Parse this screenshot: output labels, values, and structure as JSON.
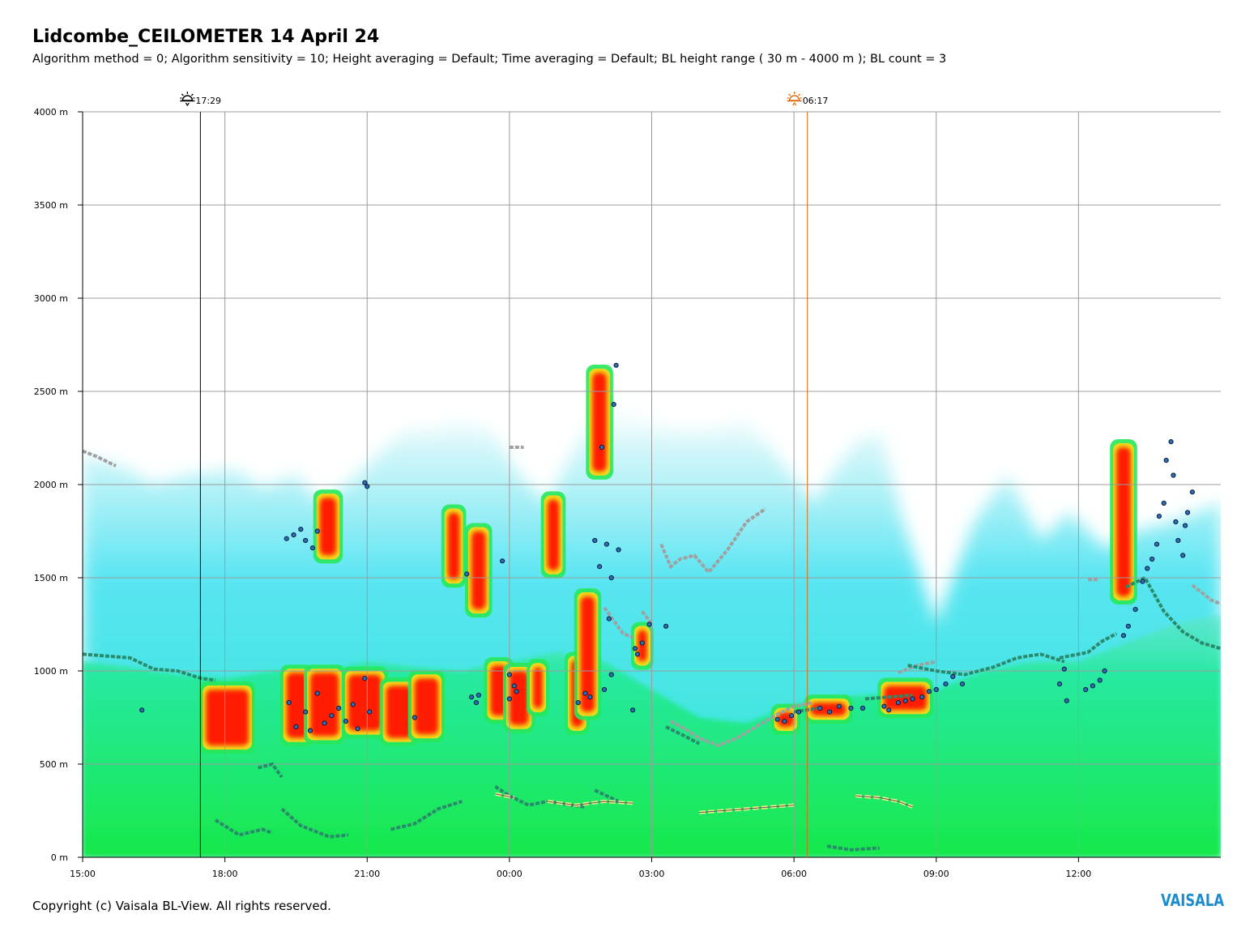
{
  "header": {
    "title": "Lidcombe_CEILOMETER 14 April 24",
    "subtitle": "Algorithm method = 0; Algorithm sensitivity = 10; Height averaging = Default; Time averaging = Default; BL height range ( 30 m - 4000 m ); BL count = 3"
  },
  "footer": {
    "copyright": "Copyright (c) Vaisala BL-View. All rights reserved.",
    "logo_text": "VAISALA"
  },
  "colors": {
    "grid": "#9c9c9c",
    "sunset_line": "#000000",
    "sunrise_line": "#e06a10",
    "low_backscatter": "#00e676",
    "mid_backscatter": "#33e1f0",
    "high_backscatter": "#ff1a00",
    "bl_layer": "#2a8a6c",
    "cloud_layer": "#a0a0a0",
    "cloud_base_marker": "#2a6fb8"
  },
  "chart_data": {
    "type": "heatmap",
    "y_ticks": [
      "0 m",
      "500 m",
      "1000 m",
      "1500 m",
      "2000 m",
      "2500 m",
      "3000 m",
      "3500 m",
      "4000 m"
    ],
    "x_ticks": [
      "15:00",
      "18:00",
      "21:00",
      "00:00",
      "03:00",
      "06:00",
      "09:00",
      "12:00"
    ],
    "ylim": [
      0,
      4000
    ],
    "xlim_hours": [
      15,
      39
    ],
    "grid": true,
    "sun_events": [
      {
        "type": "sunset",
        "icon": "sunset-icon",
        "label": "17:29",
        "time_hours": 17.483
      },
      {
        "type": "sunrise",
        "icon": "sunrise-icon",
        "label": "06:17",
        "time_hours": 30.283
      }
    ],
    "clear_air_column_top_m": [
      [
        15.0,
        2150
      ],
      [
        15.8,
        2100
      ],
      [
        16.5,
        2000
      ],
      [
        17.2,
        2050
      ],
      [
        18.2,
        2080
      ],
      [
        18.8,
        1980
      ],
      [
        19.5,
        2050
      ],
      [
        20.0,
        1900
      ],
      [
        20.6,
        2000
      ],
      [
        21.2,
        2150
      ],
      [
        21.8,
        2300
      ],
      [
        22.3,
        2300
      ],
      [
        23.0,
        2350
      ],
      [
        23.6,
        2300
      ],
      [
        24.2,
        2050
      ],
      [
        24.8,
        1900
      ],
      [
        25.6,
        2300
      ],
      [
        26.2,
        2500
      ],
      [
        26.8,
        2350
      ],
      [
        27.5,
        2300
      ],
      [
        28.2,
        2300
      ],
      [
        29.0,
        2350
      ],
      [
        29.8,
        2100
      ],
      [
        30.4,
        1900
      ],
      [
        31.2,
        2200
      ],
      [
        31.8,
        2300
      ],
      [
        32.3,
        1800
      ],
      [
        33.0,
        1250
      ],
      [
        33.8,
        1800
      ],
      [
        34.5,
        2050
      ],
      [
        35.2,
        1700
      ],
      [
        35.8,
        1850
      ],
      [
        36.6,
        1650
      ],
      [
        37.2,
        1750
      ],
      [
        38.0,
        1800
      ],
      [
        39.0,
        1900
      ]
    ],
    "green_layer_top_m": [
      [
        15.0,
        1050
      ],
      [
        16.0,
        1020
      ],
      [
        17.0,
        980
      ],
      [
        18.0,
        960
      ],
      [
        19.0,
        1000
      ],
      [
        20.0,
        1000
      ],
      [
        21.0,
        1050
      ],
      [
        22.0,
        1020
      ],
      [
        23.0,
        1000
      ],
      [
        24.0,
        1050
      ],
      [
        25.0,
        1100
      ],
      [
        26.0,
        1050
      ],
      [
        27.0,
        900
      ],
      [
        28.0,
        750
      ],
      [
        29.0,
        720
      ],
      [
        30.0,
        820
      ],
      [
        31.0,
        860
      ],
      [
        32.0,
        880
      ],
      [
        33.0,
        900
      ],
      [
        34.0,
        1000
      ],
      [
        35.0,
        1050
      ],
      [
        36.0,
        1050
      ],
      [
        37.0,
        1150
      ],
      [
        38.0,
        1250
      ],
      [
        39.0,
        1300
      ]
    ],
    "high_backscatter_patches": [
      {
        "t_start": 17.6,
        "t_end": 18.5,
        "h_low": 600,
        "h_high": 900
      },
      {
        "t_start": 19.3,
        "t_end": 19.75,
        "h_low": 640,
        "h_high": 990
      },
      {
        "t_start": 19.8,
        "t_end": 20.4,
        "h_low": 650,
        "h_high": 990
      },
      {
        "t_start": 20.0,
        "t_end": 20.35,
        "h_low": 1620,
        "h_high": 1930
      },
      {
        "t_start": 20.6,
        "t_end": 21.3,
        "h_low": 680,
        "h_high": 980
      },
      {
        "t_start": 21.4,
        "t_end": 21.95,
        "h_low": 640,
        "h_high": 920
      },
      {
        "t_start": 22.0,
        "t_end": 22.5,
        "h_low": 660,
        "h_high": 960
      },
      {
        "t_start": 22.7,
        "t_end": 22.95,
        "h_low": 1490,
        "h_high": 1850
      },
      {
        "t_start": 23.2,
        "t_end": 23.5,
        "h_low": 1330,
        "h_high": 1750
      },
      {
        "t_start": 23.6,
        "t_end": 23.95,
        "h_low": 760,
        "h_high": 1030
      },
      {
        "t_start": 24.0,
        "t_end": 24.4,
        "h_low": 710,
        "h_high": 1000
      },
      {
        "t_start": 24.5,
        "t_end": 24.7,
        "h_low": 800,
        "h_high": 1020
      },
      {
        "t_start": 24.8,
        "t_end": 25.05,
        "h_low": 1540,
        "h_high": 1920
      },
      {
        "t_start": 25.3,
        "t_end": 25.55,
        "h_low": 700,
        "h_high": 1060
      },
      {
        "t_start": 25.5,
        "t_end": 25.8,
        "h_low": 780,
        "h_high": 1400
      },
      {
        "t_start": 25.75,
        "t_end": 26.05,
        "h_low": 2070,
        "h_high": 2600
      },
      {
        "t_start": 26.7,
        "t_end": 26.9,
        "h_low": 1050,
        "h_high": 1220
      },
      {
        "t_start": 29.65,
        "t_end": 30.0,
        "h_low": 700,
        "h_high": 780
      },
      {
        "t_start": 30.35,
        "t_end": 31.1,
        "h_low": 760,
        "h_high": 830
      },
      {
        "t_start": 31.9,
        "t_end": 32.8,
        "h_low": 790,
        "h_high": 920
      },
      {
        "t_start": 36.8,
        "t_end": 37.1,
        "h_low": 1400,
        "h_high": 2200
      }
    ],
    "bl_layer_segments_m": [
      [
        [
          15.0,
          1090
        ],
        [
          15.5,
          1080
        ],
        [
          16.0,
          1070
        ],
        [
          16.5,
          1010
        ],
        [
          17.0,
          1000
        ],
        [
          17.5,
          960
        ],
        [
          17.8,
          950
        ]
      ],
      [
        [
          17.8,
          200
        ],
        [
          18.3,
          120
        ],
        [
          18.8,
          150
        ],
        [
          19.0,
          130
        ]
      ],
      [
        [
          18.7,
          480
        ],
        [
          19.0,
          500
        ],
        [
          19.2,
          430
        ]
      ],
      [
        [
          19.2,
          260
        ],
        [
          19.6,
          170
        ],
        [
          20.2,
          110
        ],
        [
          20.6,
          120
        ]
      ],
      [
        [
          21.5,
          150
        ],
        [
          22.0,
          180
        ],
        [
          22.5,
          260
        ],
        [
          23.0,
          300
        ]
      ],
      [
        [
          23.7,
          380
        ],
        [
          24.0,
          330
        ],
        [
          24.4,
          280
        ],
        [
          24.8,
          300
        ],
        [
          25.3,
          280
        ],
        [
          25.6,
          270
        ]
      ],
      [
        [
          25.8,
          360
        ],
        [
          26.3,
          300
        ]
      ],
      [
        [
          27.3,
          700
        ],
        [
          27.7,
          650
        ],
        [
          28.0,
          610
        ]
      ],
      [
        [
          30.0,
          780
        ],
        [
          30.5,
          800
        ]
      ],
      [
        [
          30.7,
          60
        ],
        [
          31.2,
          40
        ],
        [
          31.8,
          50
        ]
      ],
      [
        [
          31.5,
          850
        ],
        [
          32.0,
          860
        ],
        [
          32.5,
          870
        ]
      ],
      [
        [
          32.4,
          1030
        ],
        [
          33.0,
          1000
        ],
        [
          33.6,
          980
        ],
        [
          34.2,
          1020
        ],
        [
          34.7,
          1070
        ],
        [
          35.2,
          1090
        ],
        [
          35.7,
          1050
        ]
      ],
      [
        [
          35.6,
          1070
        ],
        [
          36.2,
          1100
        ],
        [
          36.5,
          1160
        ],
        [
          36.8,
          1200
        ]
      ],
      [
        [
          37.0,
          1450
        ],
        [
          37.4,
          1500
        ],
        [
          37.8,
          1320
        ],
        [
          38.2,
          1210
        ],
        [
          38.6,
          1150
        ],
        [
          39.0,
          1120
        ]
      ]
    ],
    "cloud_layer_segments_m": [
      [
        [
          15.0,
          2180
        ],
        [
          15.3,
          2150
        ],
        [
          15.7,
          2100
        ]
      ],
      [
        [
          24.0,
          2200
        ],
        [
          24.3,
          2200
        ]
      ],
      [
        [
          26.0,
          1340
        ],
        [
          26.4,
          1200
        ],
        [
          26.6,
          1180
        ]
      ],
      [
        [
          26.8,
          1320
        ],
        [
          27.0,
          1250
        ]
      ],
      [
        [
          27.2,
          1680
        ],
        [
          27.4,
          1560
        ],
        [
          27.6,
          1600
        ],
        [
          27.9,
          1620
        ],
        [
          28.2,
          1530
        ],
        [
          28.6,
          1650
        ],
        [
          29.0,
          1800
        ],
        [
          29.4,
          1870
        ]
      ],
      [
        [
          27.4,
          730
        ],
        [
          27.7,
          690
        ],
        [
          28.0,
          640
        ],
        [
          28.4,
          600
        ],
        [
          28.8,
          640
        ],
        [
          29.2,
          700
        ],
        [
          29.6,
          760
        ],
        [
          30.0,
          810
        ],
        [
          30.4,
          830
        ]
      ],
      [
        [
          32.2,
          990
        ],
        [
          32.6,
          1030
        ],
        [
          33.0,
          1050
        ]
      ],
      [
        [
          36.2,
          1490
        ],
        [
          36.4,
          1490
        ]
      ],
      [
        [
          38.4,
          1460
        ],
        [
          38.8,
          1380
        ],
        [
          39.0,
          1360
        ]
      ]
    ],
    "surface_layer_segments_m": [
      [
        [
          23.7,
          340
        ],
        [
          24.1,
          320
        ]
      ],
      [
        [
          24.8,
          300
        ],
        [
          25.4,
          280
        ],
        [
          26.0,
          300
        ],
        [
          26.6,
          290
        ]
      ],
      [
        [
          28.0,
          240
        ],
        [
          29.0,
          260
        ],
        [
          30.0,
          280
        ]
      ],
      [
        [
          31.3,
          330
        ],
        [
          31.8,
          320
        ],
        [
          32.2,
          300
        ],
        [
          32.5,
          270
        ]
      ]
    ],
    "cloud_base_markers_m": [
      [
        16.25,
        790
      ],
      [
        19.3,
        1710
      ],
      [
        19.45,
        1730
      ],
      [
        19.6,
        1760
      ],
      [
        19.7,
        1700
      ],
      [
        19.85,
        1660
      ],
      [
        19.95,
        1750
      ],
      [
        19.35,
        830
      ],
      [
        19.5,
        700
      ],
      [
        19.7,
        780
      ],
      [
        19.8,
        680
      ],
      [
        19.95,
        880
      ],
      [
        20.1,
        720
      ],
      [
        20.25,
        760
      ],
      [
        20.4,
        800
      ],
      [
        20.55,
        730
      ],
      [
        20.7,
        820
      ],
      [
        20.8,
        690
      ],
      [
        20.95,
        960
      ],
      [
        21.05,
        780
      ],
      [
        20.95,
        2010
      ],
      [
        21.0,
        1990
      ],
      [
        22.0,
        750
      ],
      [
        23.2,
        860
      ],
      [
        23.3,
        830
      ],
      [
        23.35,
        870
      ],
      [
        23.1,
        1520
      ],
      [
        23.85,
        1590
      ],
      [
        24.0,
        980
      ],
      [
        24.1,
        920
      ],
      [
        24.0,
        850
      ],
      [
        24.15,
        890
      ],
      [
        25.45,
        830
      ],
      [
        25.6,
        880
      ],
      [
        25.7,
        860
      ],
      [
        25.9,
        1560
      ],
      [
        25.8,
        1700
      ],
      [
        25.95,
        2200
      ],
      [
        26.05,
        1680
      ],
      [
        26.15,
        1500
      ],
      [
        26.2,
        2430
      ],
      [
        26.25,
        2640
      ],
      [
        26.1,
        1280
      ],
      [
        26.0,
        900
      ],
      [
        26.15,
        980
      ],
      [
        26.3,
        1650
      ],
      [
        26.65,
        1120
      ],
      [
        26.7,
        1090
      ],
      [
        26.8,
        1150
      ],
      [
        26.6,
        790
      ],
      [
        26.95,
        1250
      ],
      [
        27.3,
        1240
      ],
      [
        29.65,
        740
      ],
      [
        29.8,
        730
      ],
      [
        29.95,
        760
      ],
      [
        30.1,
        780
      ],
      [
        30.55,
        800
      ],
      [
        30.75,
        780
      ],
      [
        30.95,
        810
      ],
      [
        31.2,
        800
      ],
      [
        31.45,
        800
      ],
      [
        31.9,
        810
      ],
      [
        32.0,
        790
      ],
      [
        32.2,
        830
      ],
      [
        32.35,
        840
      ],
      [
        32.5,
        850
      ],
      [
        32.7,
        860
      ],
      [
        32.85,
        890
      ],
      [
        33.0,
        900
      ],
      [
        33.2,
        930
      ],
      [
        33.35,
        970
      ],
      [
        33.55,
        930
      ],
      [
        35.6,
        930
      ],
      [
        35.7,
        1010
      ],
      [
        35.75,
        840
      ],
      [
        36.15,
        900
      ],
      [
        36.3,
        920
      ],
      [
        36.45,
        950
      ],
      [
        36.55,
        1000
      ],
      [
        36.95,
        1190
      ],
      [
        37.05,
        1240
      ],
      [
        37.2,
        1330
      ],
      [
        37.35,
        1480
      ],
      [
        37.45,
        1550
      ],
      [
        37.55,
        1600
      ],
      [
        37.65,
        1680
      ],
      [
        37.7,
        1830
      ],
      [
        37.8,
        1900
      ],
      [
        37.85,
        2130
      ],
      [
        37.95,
        2230
      ],
      [
        38.0,
        2050
      ],
      [
        38.05,
        1800
      ],
      [
        38.1,
        1700
      ],
      [
        38.2,
        1620
      ],
      [
        38.25,
        1780
      ],
      [
        38.3,
        1850
      ],
      [
        38.4,
        1960
      ]
    ]
  }
}
